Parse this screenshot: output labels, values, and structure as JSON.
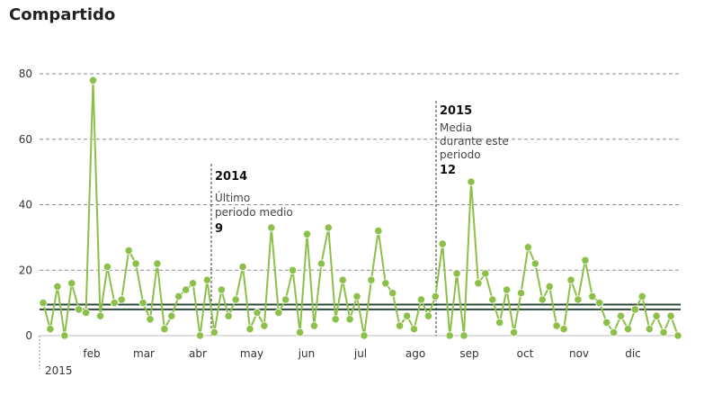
{
  "chart_data": {
    "type": "line",
    "title": "Compartido",
    "xlabel": "",
    "ylabel": "",
    "ylim": [
      0,
      80
    ],
    "yticks": [
      "0",
      "20",
      "40",
      "60",
      "80"
    ],
    "grid": true,
    "year_label": "2015",
    "month_labels": [
      "feb",
      "mar",
      "abr",
      "may",
      "jun",
      "jul",
      "ago",
      "sep",
      "oct",
      "nov",
      "dic"
    ],
    "series": [
      {
        "color": "#8dc04a",
        "values": [
          10,
          2,
          15,
          0,
          16,
          8,
          7,
          78,
          6,
          21,
          10,
          11,
          26,
          22,
          10,
          5,
          22,
          2,
          6,
          12,
          14,
          16,
          0,
          17,
          1,
          14,
          6,
          11,
          21,
          2,
          7,
          3,
          33,
          7,
          11,
          20,
          1,
          31,
          3,
          22,
          33,
          5,
          17,
          5,
          12,
          0,
          17,
          32,
          16,
          13,
          3,
          6,
          2,
          11,
          6,
          12,
          28,
          0,
          19,
          0,
          47,
          16,
          19,
          11,
          4,
          14,
          1,
          13,
          27,
          22,
          11,
          15,
          3,
          2,
          17,
          11,
          23,
          12,
          10,
          4,
          1,
          6,
          2,
          8,
          12,
          2,
          6,
          1,
          6,
          0
        ]
      }
    ],
    "reference_lines": [
      {
        "value": 8,
        "color": "#2f4a3a"
      },
      {
        "value": 9.5,
        "color": "#2f4a3a"
      }
    ],
    "annotations": [
      {
        "year": "2014",
        "text_lines": [
          "Último",
          "periodo medio"
        ],
        "value": "9"
      },
      {
        "year": "2015",
        "text_lines": [
          "Media",
          "durante este",
          "periodo"
        ],
        "value": "12"
      }
    ]
  }
}
